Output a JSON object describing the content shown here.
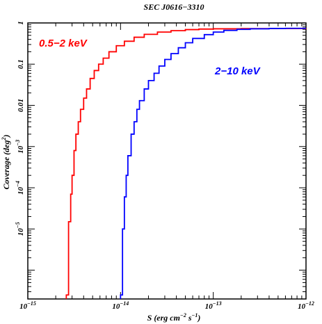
{
  "chart_data": {
    "type": "line",
    "title": "SEC J0616−3310",
    "xlabel": {
      "base": "S (erg cm",
      "exp1": "−2",
      "mid": " s",
      "exp2": "−1",
      "end": ")"
    },
    "ylabel": {
      "base": "Coverage (deg",
      "exp": "2",
      "end": ")"
    },
    "x_scale": "log",
    "y_scale": "log",
    "xlim": [
      1e-15,
      1e-12
    ],
    "ylim": [
      2e-07,
      1
    ],
    "x_ticks": [
      {
        "value": 1e-15,
        "mant": "10",
        "exp": "−15"
      },
      {
        "value": 1e-14,
        "mant": "10",
        "exp": "−14"
      },
      {
        "value": 1e-13,
        "mant": "10",
        "exp": "−13"
      },
      {
        "value": 1e-12,
        "mant": "10",
        "exp": "−12"
      }
    ],
    "y_ticks": [
      {
        "value": 1,
        "text": "1"
      },
      {
        "value": 0.1,
        "text": "0.1"
      },
      {
        "value": 0.01,
        "text": "0.01"
      },
      {
        "value": 0.001,
        "mant": "10",
        "exp": "−3"
      },
      {
        "value": 0.0001,
        "mant": "10",
        "exp": "−4"
      },
      {
        "value": 1e-05,
        "mant": "10",
        "exp": "−5"
      }
    ],
    "series": [
      {
        "name": "0.5−2 keV",
        "color": "#ff0000",
        "x": [
          2.6e-15,
          2.75e-15,
          2.9e-15,
          3e-15,
          3.15e-15,
          3.3e-15,
          3.5e-15,
          3.7e-15,
          4e-15,
          4.3e-15,
          4.7e-15,
          5.2e-15,
          5.8e-15,
          6.5e-15,
          7.5e-15,
          9e-15,
          1.1e-14,
          1.4e-14,
          1.8e-14,
          2.5e-14,
          3.5e-14,
          5e-14,
          7e-14,
          1e-13,
          2e-13,
          5e-13,
          1e-12
        ],
        "y": [
          2.5e-07,
          1.5e-05,
          7e-05,
          0.0002,
          0.0008,
          0.002,
          0.004,
          0.008,
          0.015,
          0.025,
          0.045,
          0.07,
          0.1,
          0.14,
          0.2,
          0.28,
          0.36,
          0.45,
          0.53,
          0.6,
          0.65,
          0.69,
          0.71,
          0.72,
          0.73,
          0.735,
          0.74
        ]
      },
      {
        "name": "2−10 keV",
        "color": "#0000ff",
        "x": [
          1e-14,
          1.05e-14,
          1.1e-14,
          1.15e-14,
          1.2e-14,
          1.3e-14,
          1.4e-14,
          1.5e-14,
          1.6e-14,
          1.8e-14,
          2e-14,
          2.3e-14,
          2.6e-14,
          3e-14,
          3.5e-14,
          4.2e-14,
          5e-14,
          6e-14,
          8e-14,
          1e-13,
          1.3e-13,
          1.8e-13,
          2.5e-13,
          4e-13,
          6e-13,
          1e-12
        ],
        "y": [
          2.5e-07,
          1e-05,
          6e-05,
          0.0002,
          0.0006,
          0.002,
          0.004,
          0.008,
          0.013,
          0.025,
          0.04,
          0.06,
          0.09,
          0.13,
          0.18,
          0.25,
          0.33,
          0.42,
          0.52,
          0.6,
          0.66,
          0.7,
          0.72,
          0.735,
          0.74,
          0.74
        ]
      }
    ],
    "annotations": [
      {
        "text": "0.5−2 keV",
        "color": "#ff0000"
      },
      {
        "text": "2−10 keV",
        "color": "#0000ff"
      }
    ]
  }
}
